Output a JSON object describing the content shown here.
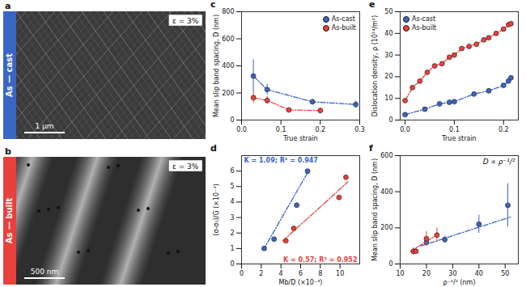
{
  "images": [
    {
      "label": "a",
      "title": "As — cast",
      "strain": "ε = 3%",
      "scale_bar": "1 μm",
      "color": "#3a66c4"
    },
    {
      "label": "b",
      "title": "As — built",
      "strain": "ε = 3%",
      "scale_bar": "500 nm",
      "color": "#e8413c"
    }
  ],
  "chart_data": [
    {
      "label": "c",
      "type": "line",
      "x_label": "True strain",
      "y_label": "Mean slip band spacing, D (nm)",
      "xlim": [
        0,
        0.3
      ],
      "xticks": [
        {
          "value": 0,
          "label": "0.0"
        },
        {
          "value": 0.1,
          "label": "0.1"
        },
        {
          "value": 0.2,
          "label": "0.2"
        },
        {
          "value": 0.3,
          "label": "0.3"
        }
      ],
      "ylim": [
        0,
        800
      ],
      "yticks": [
        0,
        200,
        400,
        600,
        800
      ],
      "legend": "upper right",
      "series": [
        {
          "name": "As-cast",
          "color": "#3a66c4",
          "marker": "circle",
          "line_style": "dashdot",
          "x": [
            0.03,
            0.065,
            0.18,
            0.29
          ],
          "values": [
            325,
            225,
            135,
            115
          ],
          "errors": [
            120,
            40,
            20,
            25
          ]
        },
        {
          "name": "As-built",
          "color": "#e8413c",
          "marker": "circle",
          "line_style": "dashdot",
          "x": [
            0.03,
            0.065,
            0.12,
            0.2
          ],
          "values": [
            165,
            145,
            75,
            70
          ],
          "errors": [
            40,
            30,
            10,
            20
          ]
        }
      ]
    },
    {
      "label": "e",
      "type": "line",
      "x_label": "True strain",
      "y_label": "Dislocation density, ρ (10¹⁴/m²)",
      "xlim": [
        -0.01,
        0.23
      ],
      "xticks": [
        {
          "value": 0,
          "label": "0.0"
        },
        {
          "value": 0.1,
          "label": "0.1"
        },
        {
          "value": 0.2,
          "label": "0.2"
        }
      ],
      "ylim": [
        0,
        50
      ],
      "yticks": [
        0,
        10,
        20,
        30,
        40,
        50
      ],
      "legend": "upper left",
      "series": [
        {
          "name": "As-cast",
          "color": "#3a66c4",
          "marker": "circle",
          "line_style": "dashdot",
          "x": [
            0.0,
            0.04,
            0.07,
            0.09,
            0.1,
            0.14,
            0.17,
            0.2,
            0.21,
            0.215
          ],
          "values": [
            2.5,
            5,
            7.5,
            8.2,
            8.5,
            12,
            13.5,
            16,
            18,
            19.5
          ]
        },
        {
          "name": "As-built",
          "color": "#e8413c",
          "marker": "circle",
          "line_style": "dashdot",
          "x": [
            0.0,
            0.015,
            0.03,
            0.045,
            0.06,
            0.075,
            0.09,
            0.1,
            0.115,
            0.13,
            0.145,
            0.16,
            0.17,
            0.185,
            0.2,
            0.21,
            0.215
          ],
          "values": [
            9,
            15,
            18,
            22,
            25,
            26,
            29,
            30,
            33,
            34,
            35,
            37,
            38,
            40,
            42,
            44,
            44.5
          ]
        }
      ]
    },
    {
      "label": "d",
      "type": "scatter",
      "x_label": "Mb/D (×10⁻³)",
      "y_label": "(σ-σ₀)/G (×10⁻³)",
      "xlim": [
        0,
        12
      ],
      "xticks": [
        0,
        2,
        4,
        6,
        8,
        10
      ],
      "ylim": [
        0,
        7
      ],
      "yticks": [
        0,
        1,
        2,
        3,
        4,
        5,
        6
      ],
      "series": [
        {
          "color": "#3a66c4",
          "marker": "circle",
          "line_style": "dashdot",
          "x": [
            2.3,
            3.3,
            5.6,
            6.7
          ],
          "values": [
            1.0,
            1.6,
            3.8,
            6.0
          ],
          "fit_x": [
            2.2,
            6.8
          ],
          "fit_values": [
            0.9,
            6.0
          ],
          "annotation": "K = 1.09; R² = 0.947"
        },
        {
          "color": "#e8413c",
          "marker": "circle",
          "line_style": "dashdot",
          "x": [
            4.5,
            5.3,
            9.9,
            10.6
          ],
          "values": [
            1.5,
            2.3,
            4.3,
            5.6
          ],
          "fit_x": [
            4.2,
            10.8
          ],
          "fit_values": [
            1.5,
            5.3
          ],
          "annotation": "K = 0.57; R² = 0.952"
        }
      ]
    },
    {
      "label": "f",
      "type": "scatter",
      "x_label": "ρ⁻¹/² (nm)",
      "y_label": "Mean slip band spacing, D (nm)",
      "annotation": "D ∝ ρ⁻¹/²",
      "xlim": [
        10,
        55
      ],
      "xticks": [
        10,
        20,
        30,
        40,
        50
      ],
      "ylim": [
        0,
        600
      ],
      "yticks": [
        0,
        200,
        400,
        600
      ],
      "series": [
        {
          "color": "#3a66c4",
          "marker": "circle",
          "line_style": "dashdot",
          "x": [
            20,
            27,
            40,
            51
          ],
          "values": [
            120,
            135,
            220,
            325
          ],
          "errors": [
            20,
            20,
            50,
            120
          ],
          "fit_x": [
            18,
            52
          ],
          "fit_values": [
            100,
            260
          ]
        },
        {
          "color": "#e8413c",
          "marker": "circle",
          "line_style": "dashdot",
          "x": [
            15,
            16,
            20,
            24
          ],
          "values": [
            70,
            70,
            140,
            160
          ],
          "errors": [
            20,
            15,
            40,
            40
          ],
          "fit_x": [
            14,
            25
          ],
          "fit_values": [
            70,
            170
          ]
        }
      ]
    }
  ]
}
